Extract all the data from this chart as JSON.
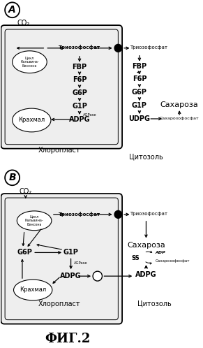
{
  "bg_color": "#ffffff",
  "fig_title": "ФИГ.2",
  "panel_A_label": "A",
  "panel_B_label": "B",
  "co2_label": "CO₂",
  "chloroplast_label": "Хлоропласт",
  "cytosol_label": "Цитозоль",
  "triosphosphate": "Триозофосфат",
  "saharoza": "Сахароза",
  "saharozofosphat": "Сахарозофосфат",
  "krahmal": "Крахмал",
  "calvin_cycle": "Цикл\nКальвина-\nБенсона",
  "AGPase": "AGPase",
  "SS": "SS",
  "ADP": "ADP"
}
